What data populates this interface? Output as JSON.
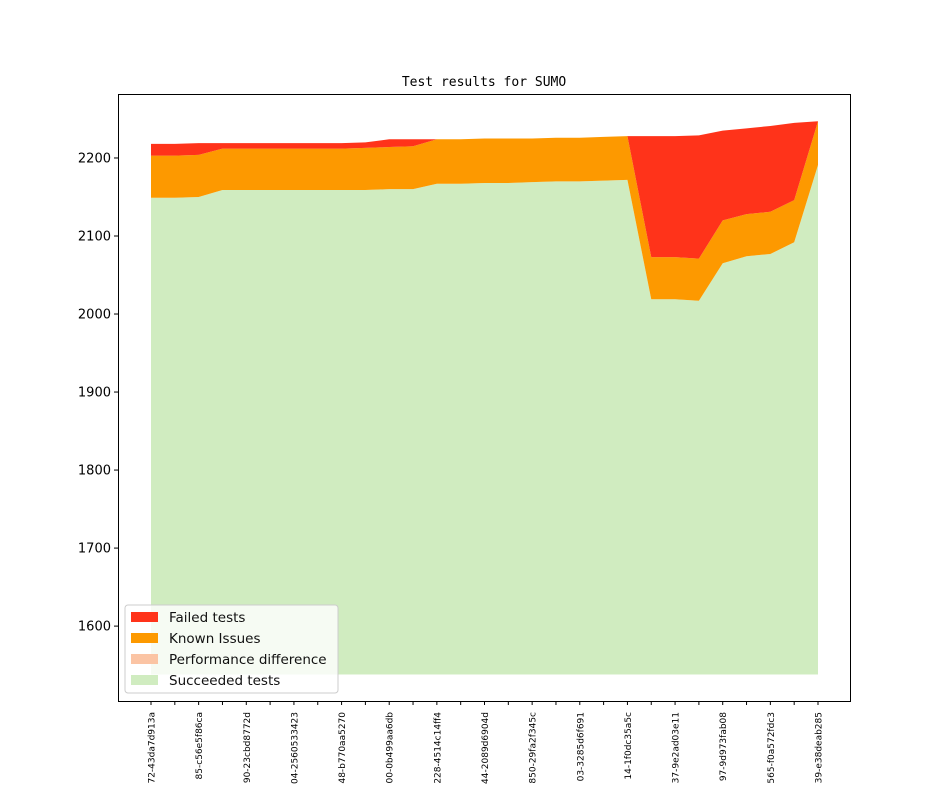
{
  "chart_data": {
    "type": "area",
    "stacked": true,
    "title": "Test results for SUMO",
    "xlabel": "",
    "ylabel": "",
    "ylim": [
      1504,
      2282
    ],
    "baseline": 1538,
    "yticks": [
      1600,
      1700,
      1800,
      1900,
      2000,
      2100,
      2200
    ],
    "grid": false,
    "legend_position": "bottom-left",
    "x_tick_labels": [
      "72-43da7d913a",
      "85-c56e5f86ca",
      "90-23cbd8772d",
      "04-2560533423",
      "48-b770aa5270",
      "00-0b499aa6db",
      "228-4514c14ff4",
      "44-2089d6904d",
      "850-29fa2f345c",
      "03-3285d6f691",
      "14-1f0dc35a5c",
      "37-9e2ad03e11",
      "97-9d973fab08",
      "565-f0a572fdc3",
      "39-e38deab285"
    ],
    "x_count": 29,
    "series": [
      {
        "name": "Succeeded tests",
        "color": "#d0ecc0",
        "cumulative_top": [
          2149,
          2149,
          2150,
          2159,
          2159,
          2159,
          2159,
          2159,
          2159,
          2159,
          2160,
          2160,
          2167,
          2167,
          2168,
          2168,
          2169,
          2170,
          2170,
          2171,
          2172,
          2019,
          2019,
          2017,
          2065,
          2074,
          2077,
          2092,
          2191
        ]
      },
      {
        "name": "Performance difference",
        "color": "#fbc4a4",
        "cumulative_top": [
          2149,
          2149,
          2150,
          2159,
          2159,
          2159,
          2159,
          2159,
          2159,
          2159,
          2160,
          2160,
          2167,
          2167,
          2168,
          2168,
          2169,
          2170,
          2170,
          2171,
          2172,
          2019,
          2019,
          2017,
          2065,
          2074,
          2077,
          2092,
          2191
        ]
      },
      {
        "name": "Known Issues",
        "color": "#fd9900",
        "cumulative_top": [
          2203,
          2203,
          2204,
          2212,
          2212,
          2212,
          2212,
          2212,
          2212,
          2213,
          2214,
          2215,
          2224,
          2224,
          2225,
          2225,
          2225,
          2226,
          2226,
          2227,
          2228,
          2073,
          2073,
          2071,
          2120,
          2128,
          2131,
          2146,
          2247
        ]
      },
      {
        "name": "Failed tests",
        "color": "#ff331a",
        "cumulative_top": [
          2218,
          2218,
          2219,
          2219,
          2219,
          2219,
          2219,
          2219,
          2219,
          2220,
          2224,
          2224,
          2224,
          2224,
          2225,
          2225,
          2225,
          2226,
          2226,
          2227,
          2228,
          2228,
          2228,
          2229,
          2235,
          2238,
          2241,
          2245,
          2247
        ]
      }
    ],
    "legend": [
      "Failed tests",
      "Known Issues",
      "Performance difference",
      "Succeeded tests"
    ]
  }
}
